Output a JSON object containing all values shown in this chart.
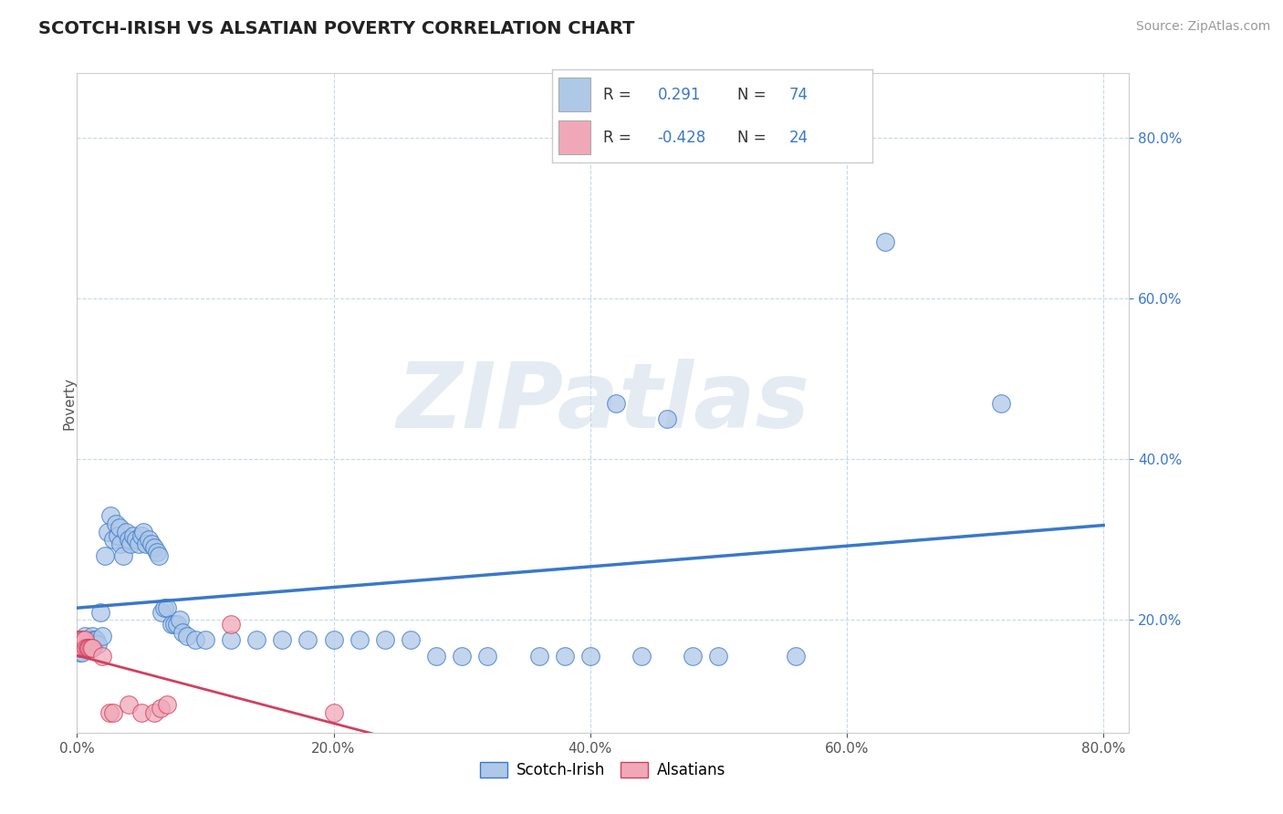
{
  "title": "SCOTCH-IRISH VS ALSATIAN POVERTY CORRELATION CHART",
  "source": "Source: ZipAtlas.com",
  "ylabel": "Poverty",
  "legend_bottom": [
    "Scotch-Irish",
    "Alsatians"
  ],
  "blue_color": "#aec8e8",
  "blue_line_color": "#3a78c9",
  "pink_color": "#f0a8b8",
  "pink_line_color": "#d04060",
  "grid_color": "#c8d8e8",
  "watermark": "ZIPatlas",
  "blue_R": 0.291,
  "blue_N": 74,
  "pink_R": -0.428,
  "pink_N": 24,
  "scotch_irish_points": [
    [
      0.001,
      0.17
    ],
    [
      0.002,
      0.16
    ],
    [
      0.003,
      0.165
    ],
    [
      0.003,
      0.175
    ],
    [
      0.004,
      0.16
    ],
    [
      0.005,
      0.175
    ],
    [
      0.006,
      0.18
    ],
    [
      0.007,
      0.165
    ],
    [
      0.008,
      0.17
    ],
    [
      0.009,
      0.165
    ],
    [
      0.01,
      0.175
    ],
    [
      0.011,
      0.17
    ],
    [
      0.012,
      0.18
    ],
    [
      0.013,
      0.175
    ],
    [
      0.015,
      0.175
    ],
    [
      0.016,
      0.17
    ],
    [
      0.018,
      0.21
    ],
    [
      0.02,
      0.18
    ],
    [
      0.022,
      0.28
    ],
    [
      0.024,
      0.31
    ],
    [
      0.026,
      0.33
    ],
    [
      0.028,
      0.3
    ],
    [
      0.03,
      0.32
    ],
    [
      0.032,
      0.305
    ],
    [
      0.033,
      0.315
    ],
    [
      0.034,
      0.295
    ],
    [
      0.036,
      0.28
    ],
    [
      0.038,
      0.31
    ],
    [
      0.04,
      0.3
    ],
    [
      0.042,
      0.295
    ],
    [
      0.044,
      0.305
    ],
    [
      0.046,
      0.3
    ],
    [
      0.048,
      0.295
    ],
    [
      0.05,
      0.305
    ],
    [
      0.052,
      0.31
    ],
    [
      0.054,
      0.295
    ],
    [
      0.056,
      0.3
    ],
    [
      0.058,
      0.295
    ],
    [
      0.06,
      0.29
    ],
    [
      0.062,
      0.285
    ],
    [
      0.064,
      0.28
    ],
    [
      0.066,
      0.21
    ],
    [
      0.068,
      0.215
    ],
    [
      0.07,
      0.215
    ],
    [
      0.074,
      0.195
    ],
    [
      0.076,
      0.195
    ],
    [
      0.078,
      0.195
    ],
    [
      0.08,
      0.2
    ],
    [
      0.082,
      0.185
    ],
    [
      0.086,
      0.18
    ],
    [
      0.092,
      0.175
    ],
    [
      0.1,
      0.175
    ],
    [
      0.12,
      0.175
    ],
    [
      0.14,
      0.175
    ],
    [
      0.16,
      0.175
    ],
    [
      0.18,
      0.175
    ],
    [
      0.2,
      0.175
    ],
    [
      0.22,
      0.175
    ],
    [
      0.24,
      0.175
    ],
    [
      0.26,
      0.175
    ],
    [
      0.28,
      0.155
    ],
    [
      0.3,
      0.155
    ],
    [
      0.32,
      0.155
    ],
    [
      0.36,
      0.155
    ],
    [
      0.38,
      0.155
    ],
    [
      0.4,
      0.155
    ],
    [
      0.42,
      0.47
    ],
    [
      0.44,
      0.155
    ],
    [
      0.46,
      0.45
    ],
    [
      0.48,
      0.155
    ],
    [
      0.5,
      0.155
    ],
    [
      0.56,
      0.155
    ],
    [
      0.63,
      0.67
    ],
    [
      0.72,
      0.47
    ]
  ],
  "alsatian_points": [
    [
      0.001,
      0.175
    ],
    [
      0.002,
      0.165
    ],
    [
      0.002,
      0.175
    ],
    [
      0.003,
      0.175
    ],
    [
      0.003,
      0.17
    ],
    [
      0.004,
      0.165
    ],
    [
      0.005,
      0.175
    ],
    [
      0.006,
      0.175
    ],
    [
      0.007,
      0.165
    ],
    [
      0.008,
      0.165
    ],
    [
      0.009,
      0.165
    ],
    [
      0.01,
      0.165
    ],
    [
      0.011,
      0.165
    ],
    [
      0.012,
      0.165
    ],
    [
      0.02,
      0.155
    ],
    [
      0.025,
      0.085
    ],
    [
      0.028,
      0.085
    ],
    [
      0.04,
      0.095
    ],
    [
      0.05,
      0.085
    ],
    [
      0.06,
      0.085
    ],
    [
      0.065,
      0.09
    ],
    [
      0.07,
      0.095
    ],
    [
      0.12,
      0.195
    ],
    [
      0.2,
      0.085
    ]
  ],
  "xlim": [
    0.0,
    0.82
  ],
  "ylim": [
    0.06,
    0.88
  ],
  "figsize": [
    14.06,
    8.92
  ],
  "dpi": 100
}
